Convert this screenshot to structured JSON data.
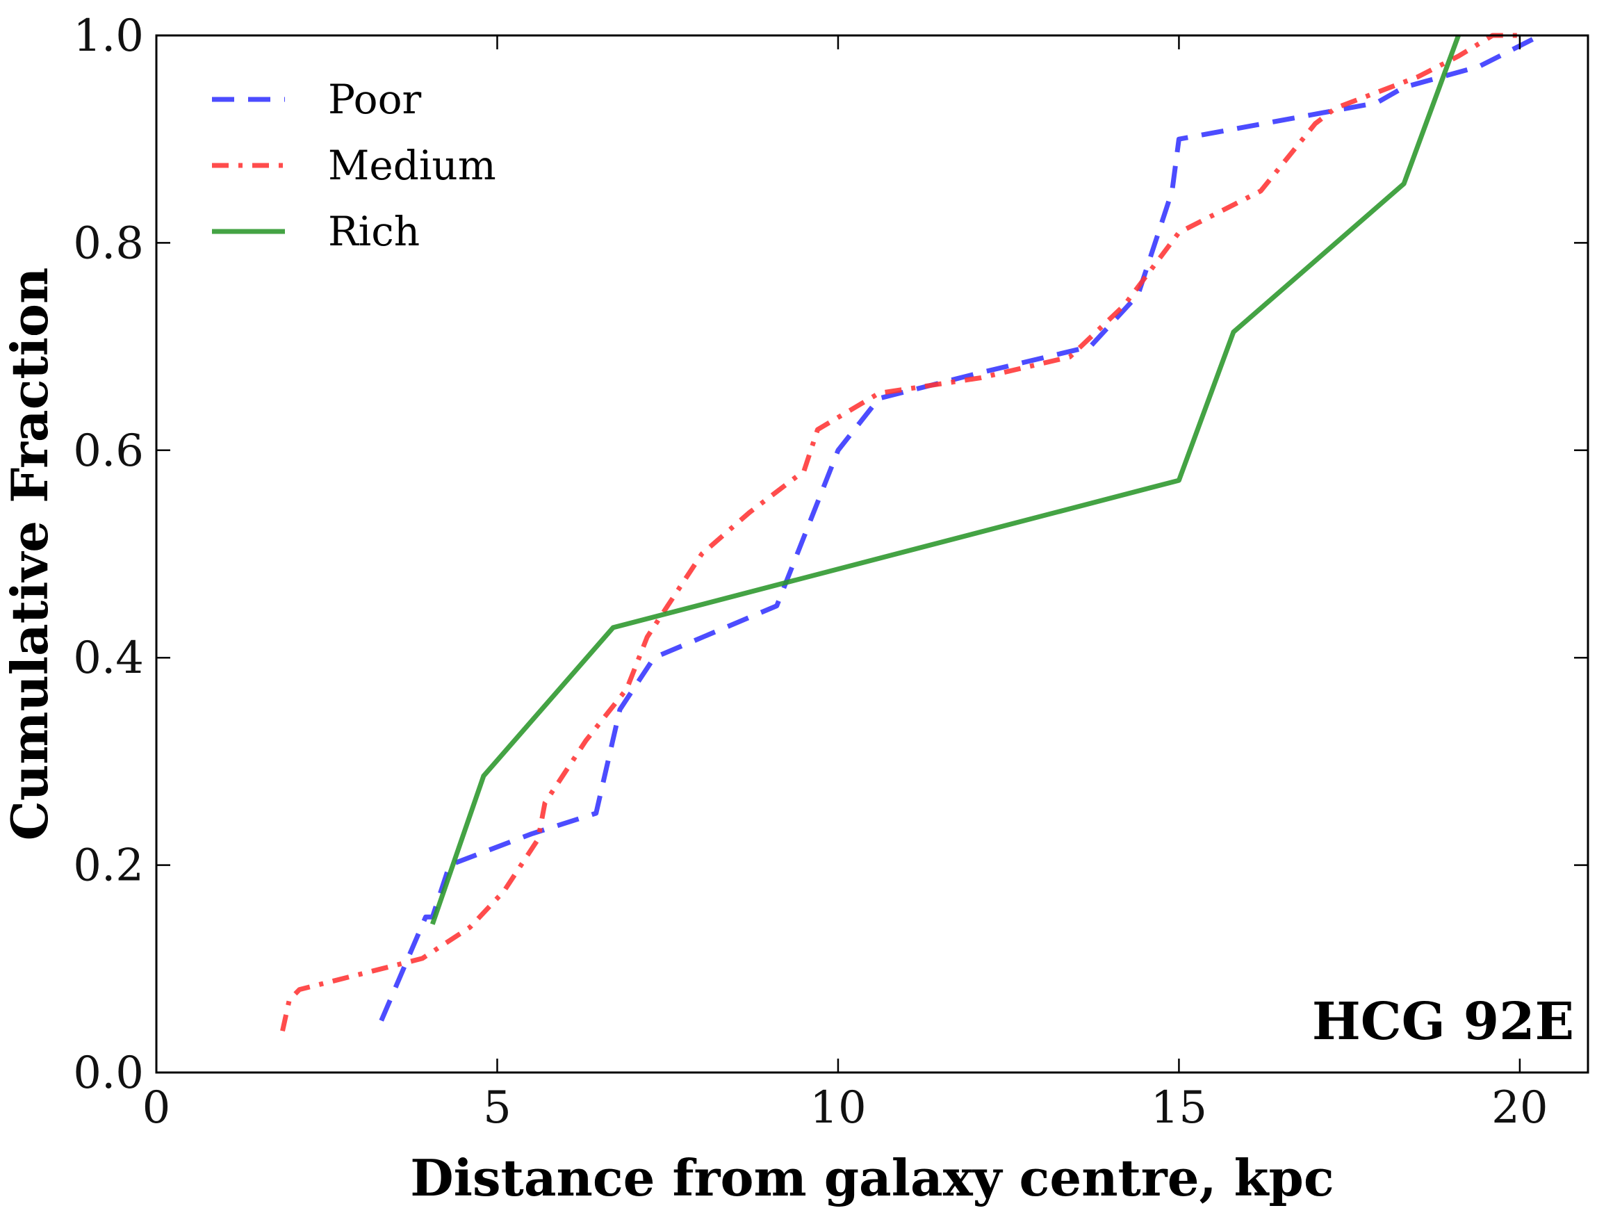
{
  "chart_data": {
    "type": "line",
    "title": "",
    "xlabel": "Distance from galaxy centre, kpc",
    "ylabel": "Cumulative Fraction",
    "xlim": [
      0,
      21
    ],
    "ylim": [
      0,
      1.0
    ],
    "xticks": [
      0,
      5,
      10,
      15,
      20
    ],
    "xtick_labels": [
      "0",
      "5",
      "10",
      "15",
      "20"
    ],
    "yticks": [
      0.0,
      0.2,
      0.4,
      0.6,
      0.8,
      1.0
    ],
    "ytick_labels": [
      "0.0",
      "0.2",
      "0.4",
      "0.6",
      "0.8",
      "1.0"
    ],
    "grid": false,
    "legend_position": "top-left",
    "annotation": "HCG 92E",
    "series": [
      {
        "name": "Poor",
        "color": "#3333ff",
        "style": "dashed",
        "x": [
          3.3,
          3.95,
          4.05,
          4.3,
          4.9,
          5.5,
          6.45,
          6.8,
          7.3,
          9.1,
          10.0,
          10.6,
          12.1,
          13.7,
          14.4,
          14.9,
          15.0,
          17.9,
          18.3,
          19.4,
          20.3
        ],
        "y": [
          0.05,
          0.15,
          0.15,
          0.2,
          0.215,
          0.23,
          0.25,
          0.35,
          0.4,
          0.45,
          0.6,
          0.65,
          0.675,
          0.7,
          0.75,
          0.85,
          0.9,
          0.935,
          0.95,
          0.97,
          1.0
        ]
      },
      {
        "name": "Medium",
        "color": "#ff3333",
        "style": "dashdot",
        "x": [
          1.85,
          1.95,
          2.1,
          3.0,
          3.9,
          4.6,
          5.1,
          5.6,
          5.7,
          6.3,
          6.9,
          7.2,
          7.5,
          8.0,
          8.7,
          9.5,
          9.7,
          10.6,
          12.1,
          13.4,
          14.2,
          15.0,
          16.2,
          17.0,
          17.3,
          18.5,
          19.1,
          19.6,
          20.0
        ],
        "y": [
          0.04,
          0.07,
          0.08,
          0.095,
          0.11,
          0.14,
          0.175,
          0.225,
          0.26,
          0.32,
          0.37,
          0.42,
          0.45,
          0.5,
          0.54,
          0.58,
          0.62,
          0.655,
          0.67,
          0.69,
          0.74,
          0.81,
          0.85,
          0.915,
          0.93,
          0.96,
          0.98,
          1.0,
          1.0
        ]
      },
      {
        "name": "Rich",
        "color": "#2a962a",
        "style": "solid",
        "x": [
          4.05,
          4.8,
          6.7,
          15.0,
          15.8,
          18.3,
          19.1
        ],
        "y": [
          0.143,
          0.286,
          0.429,
          0.571,
          0.714,
          0.857,
          1.0
        ]
      }
    ]
  }
}
